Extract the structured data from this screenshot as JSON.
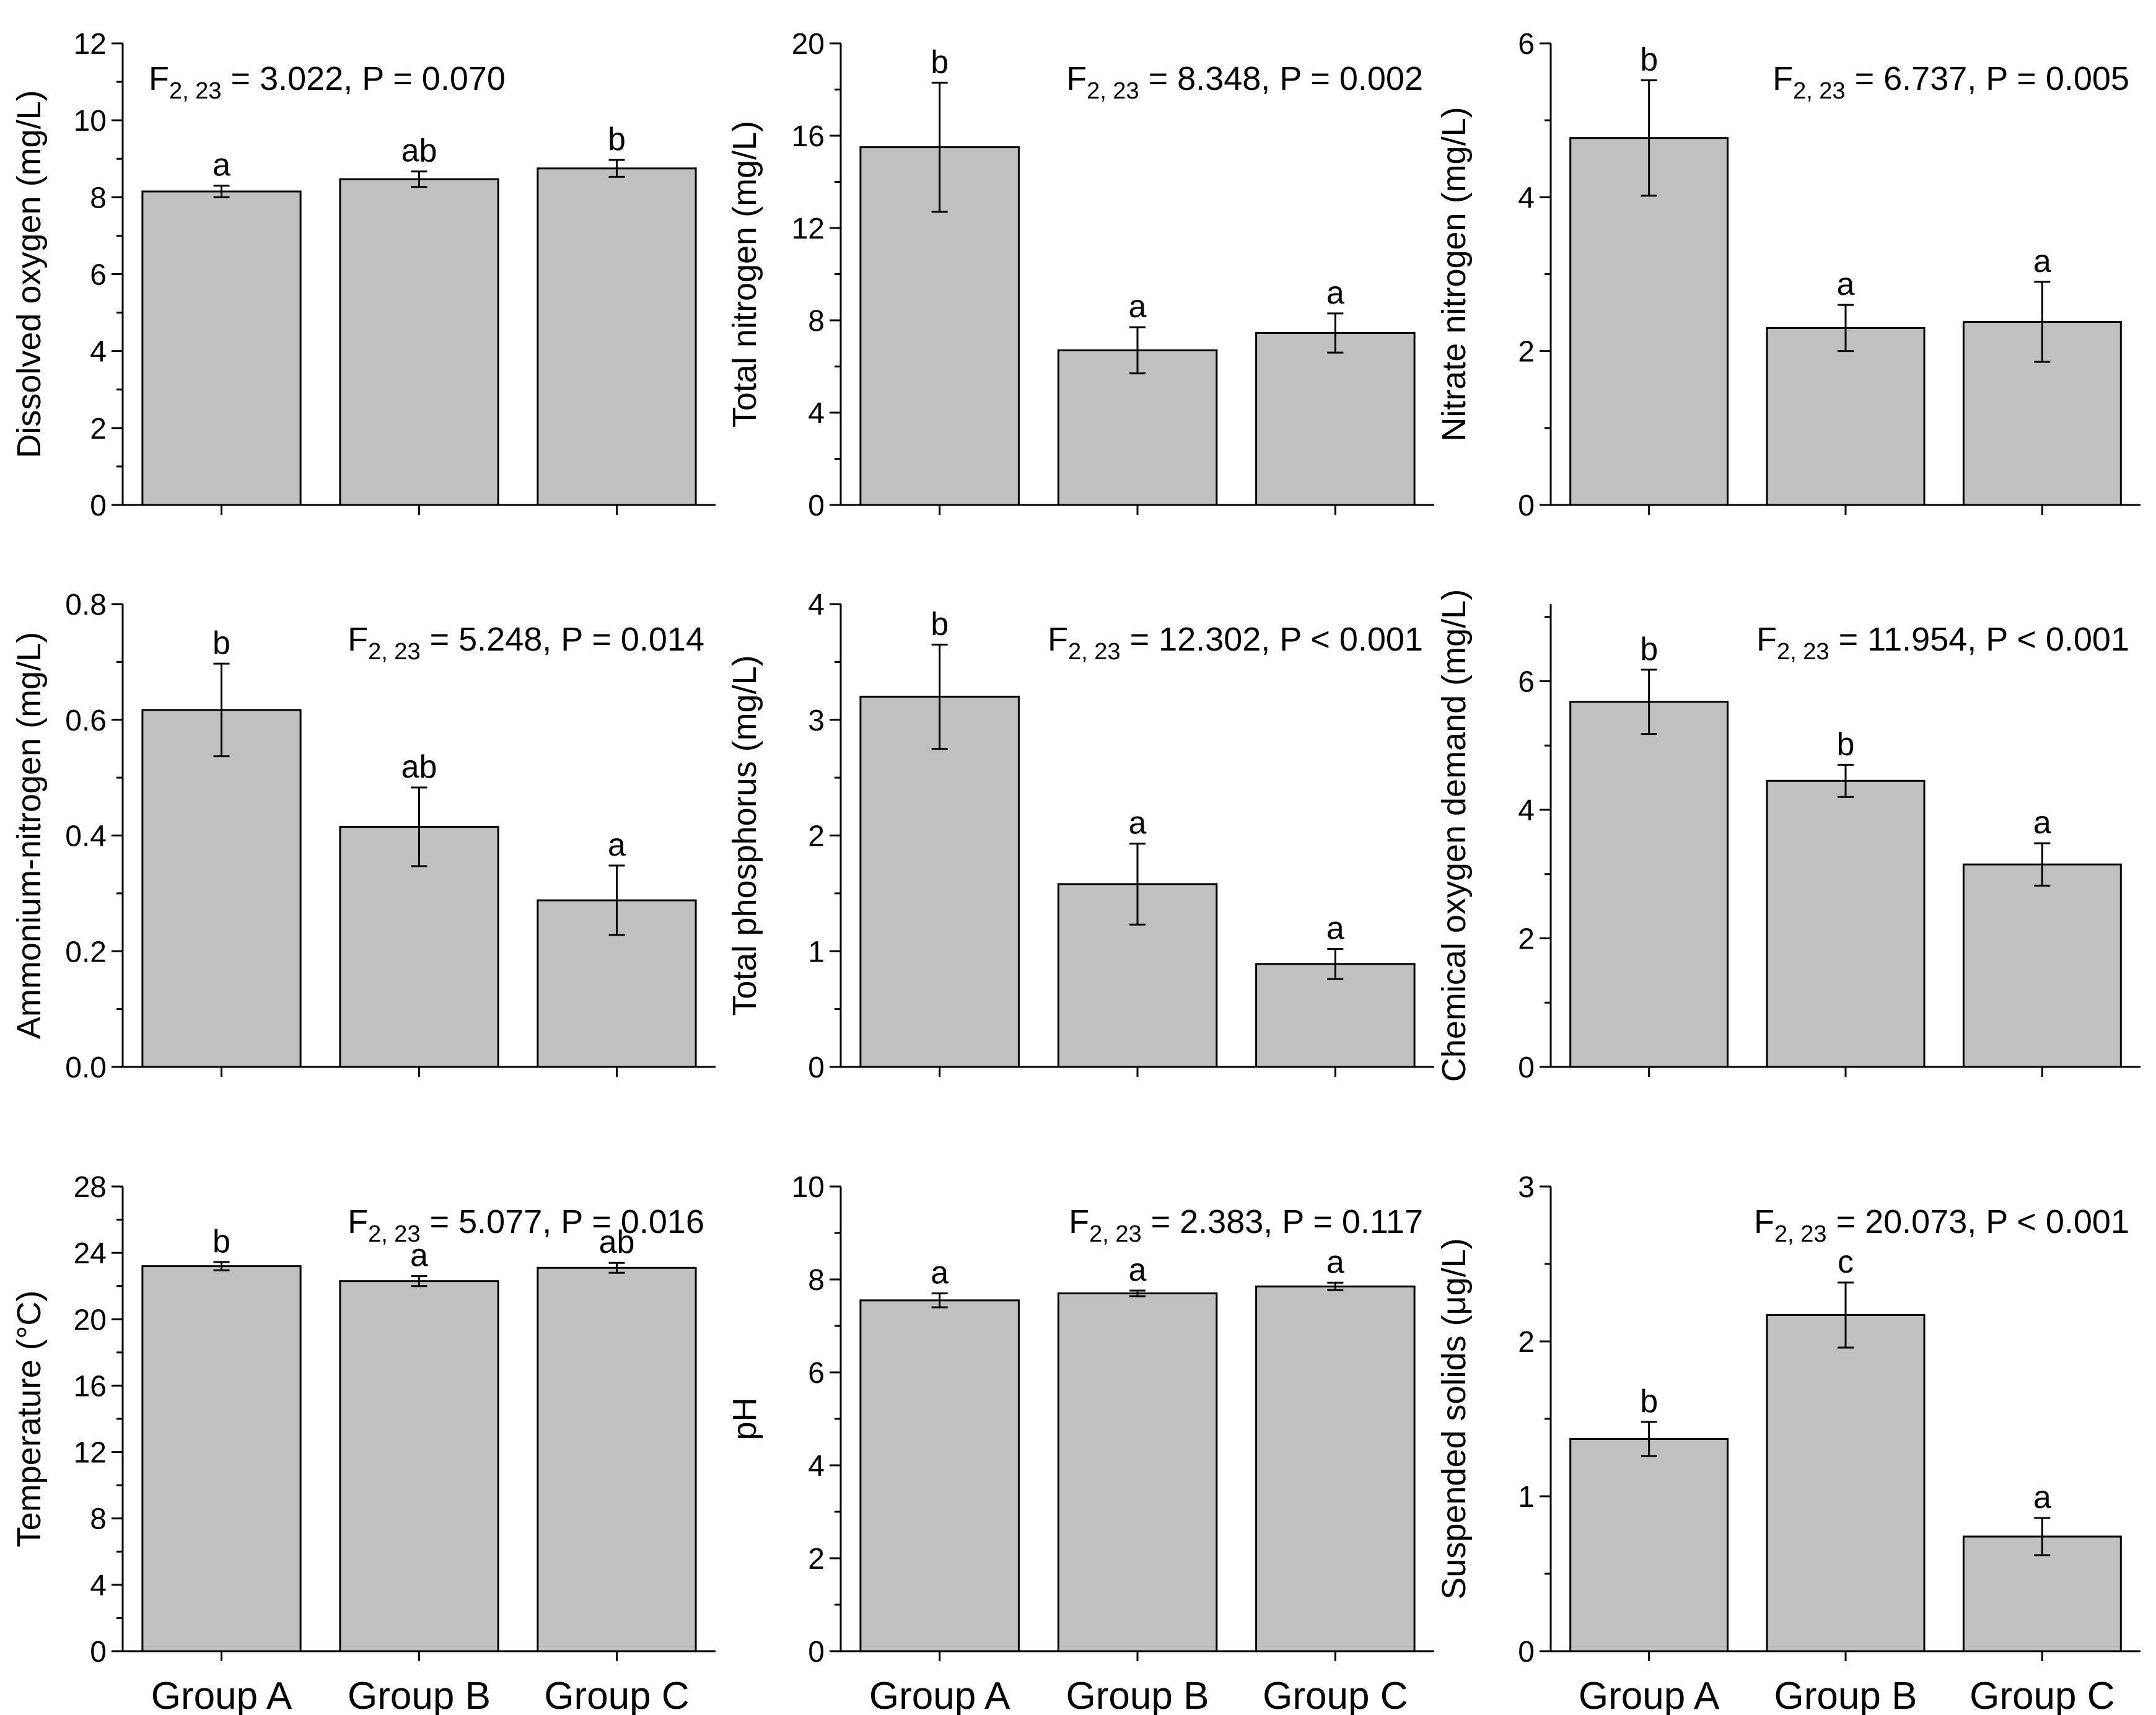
{
  "chart_data": [
    {
      "type": "bar",
      "categories": [
        "Group A",
        "Group B",
        "Group C"
      ],
      "values": [
        8.15,
        8.47,
        8.75
      ],
      "errors": [
        0.15,
        0.2,
        0.22
      ],
      "letters": [
        "a",
        "ab",
        "b"
      ],
      "ylabel": "Dissolved oxygen (mg/L)",
      "ylim": [
        0,
        12
      ],
      "yticks": [
        0,
        2,
        4,
        6,
        8,
        10,
        12
      ],
      "stat": {
        "prefix": "F",
        "sub": "2, 23",
        "text": " = 3.022, P = 0.070",
        "align": "left"
      }
    },
    {
      "type": "bar",
      "categories": [
        "Group A",
        "Group B",
        "Group C"
      ],
      "values": [
        15.5,
        6.7,
        7.45
      ],
      "errors": [
        2.8,
        1.0,
        0.85
      ],
      "letters": [
        "b",
        "a",
        "a"
      ],
      "ylabel": "Total nitrogen (mg/L)",
      "ylim": [
        0,
        20
      ],
      "yticks": [
        0,
        4,
        8,
        12,
        16,
        20
      ],
      "stat": {
        "prefix": "F",
        "sub": "2, 23",
        "text": " = 8.348, P = 0.002",
        "align": "right"
      }
    },
    {
      "type": "bar",
      "categories": [
        "Group A",
        "Group B",
        "Group C"
      ],
      "values": [
        4.77,
        2.3,
        2.38
      ],
      "errors": [
        0.75,
        0.3,
        0.52
      ],
      "letters": [
        "b",
        "a",
        "a"
      ],
      "ylabel": "Nitrate nitrogen (mg/L)",
      "ylim": [
        0,
        6
      ],
      "yticks": [
        0,
        2,
        4,
        6
      ],
      "stat": {
        "prefix": "F",
        "sub": "2, 23",
        "text": " = 6.737, P = 0.005",
        "align": "right"
      }
    },
    {
      "type": "bar",
      "categories": [
        "Group A",
        "Group B",
        "Group C"
      ],
      "values": [
        0.617,
        0.415,
        0.288
      ],
      "errors": [
        0.08,
        0.068,
        0.06
      ],
      "letters": [
        "b",
        "ab",
        "a"
      ],
      "ylabel": "Ammonium-nitrogen (mg/L)",
      "ylim": [
        0,
        0.8
      ],
      "yticks": [
        0.0,
        0.2,
        0.4,
        0.6,
        0.8
      ],
      "ytick_labels": [
        "0.0",
        "0.2",
        "0.4",
        "0.6",
        "0.8"
      ],
      "stat": {
        "prefix": "F",
        "sub": "2, 23",
        "text": " = 5.248, P = 0.014",
        "align": "right"
      }
    },
    {
      "type": "bar",
      "categories": [
        "Group A",
        "Group B",
        "Group C"
      ],
      "values": [
        3.2,
        1.58,
        0.89
      ],
      "errors": [
        0.45,
        0.35,
        0.13
      ],
      "letters": [
        "b",
        "a",
        "a"
      ],
      "ylabel": "Total phosphorus (mg/L)",
      "ylim": [
        0,
        4
      ],
      "yticks": [
        0,
        1,
        2,
        3,
        4
      ],
      "stat": {
        "prefix": "F",
        "sub": "2, 23",
        "text": " = 12.302, P < 0.001",
        "align": "right"
      }
    },
    {
      "type": "bar",
      "categories": [
        "Group A",
        "Group B",
        "Group C"
      ],
      "values": [
        5.68,
        4.45,
        3.15
      ],
      "errors": [
        0.5,
        0.25,
        0.33
      ],
      "letters": [
        "b",
        "b",
        "a"
      ],
      "ylabel": "Chemical oxygen demand (mg/L)",
      "ylim": [
        0,
        7.2
      ],
      "yticks": [
        0,
        2,
        4,
        6
      ],
      "stat": {
        "prefix": "F",
        "sub": "2, 23",
        "text": " = 11.954, P < 0.001",
        "align": "right"
      }
    },
    {
      "type": "bar",
      "categories": [
        "Group A",
        "Group B",
        "Group C"
      ],
      "values": [
        23.2,
        22.3,
        23.1
      ],
      "errors": [
        0.25,
        0.3,
        0.3
      ],
      "letters": [
        "b",
        "a",
        "ab"
      ],
      "ylabel": "Temperature (°C)",
      "ylim": [
        0,
        28
      ],
      "yticks": [
        0,
        4,
        8,
        12,
        16,
        20,
        24,
        28
      ],
      "stat": {
        "prefix": "F",
        "sub": "2, 23",
        "text": " = 5.077, P = 0.016",
        "align": "right"
      }
    },
    {
      "type": "bar",
      "categories": [
        "Group A",
        "Group B",
        "Group C"
      ],
      "values": [
        7.55,
        7.7,
        7.85
      ],
      "errors": [
        0.15,
        0.06,
        0.08
      ],
      "letters": [
        "a",
        "a",
        "a"
      ],
      "ylabel": "pH",
      "ylim": [
        0,
        10
      ],
      "yticks": [
        0,
        2,
        4,
        6,
        8,
        10
      ],
      "stat": {
        "prefix": "F",
        "sub": "2, 23",
        "text": " = 2.383, P = 0.117",
        "align": "right"
      }
    },
    {
      "type": "bar",
      "categories": [
        "Group A",
        "Group B",
        "Group C"
      ],
      "values": [
        1.37,
        2.17,
        0.74
      ],
      "errors": [
        0.11,
        0.21,
        0.12
      ],
      "letters": [
        "b",
        "c",
        "a"
      ],
      "ylabel": "Suspended solids (μg/L)",
      "ylim": [
        0,
        3
      ],
      "yticks": [
        0,
        1,
        2,
        3
      ],
      "stat": {
        "prefix": "F",
        "sub": "2, 23",
        "text": " = 20.073, P < 0.001",
        "align": "right"
      }
    }
  ]
}
